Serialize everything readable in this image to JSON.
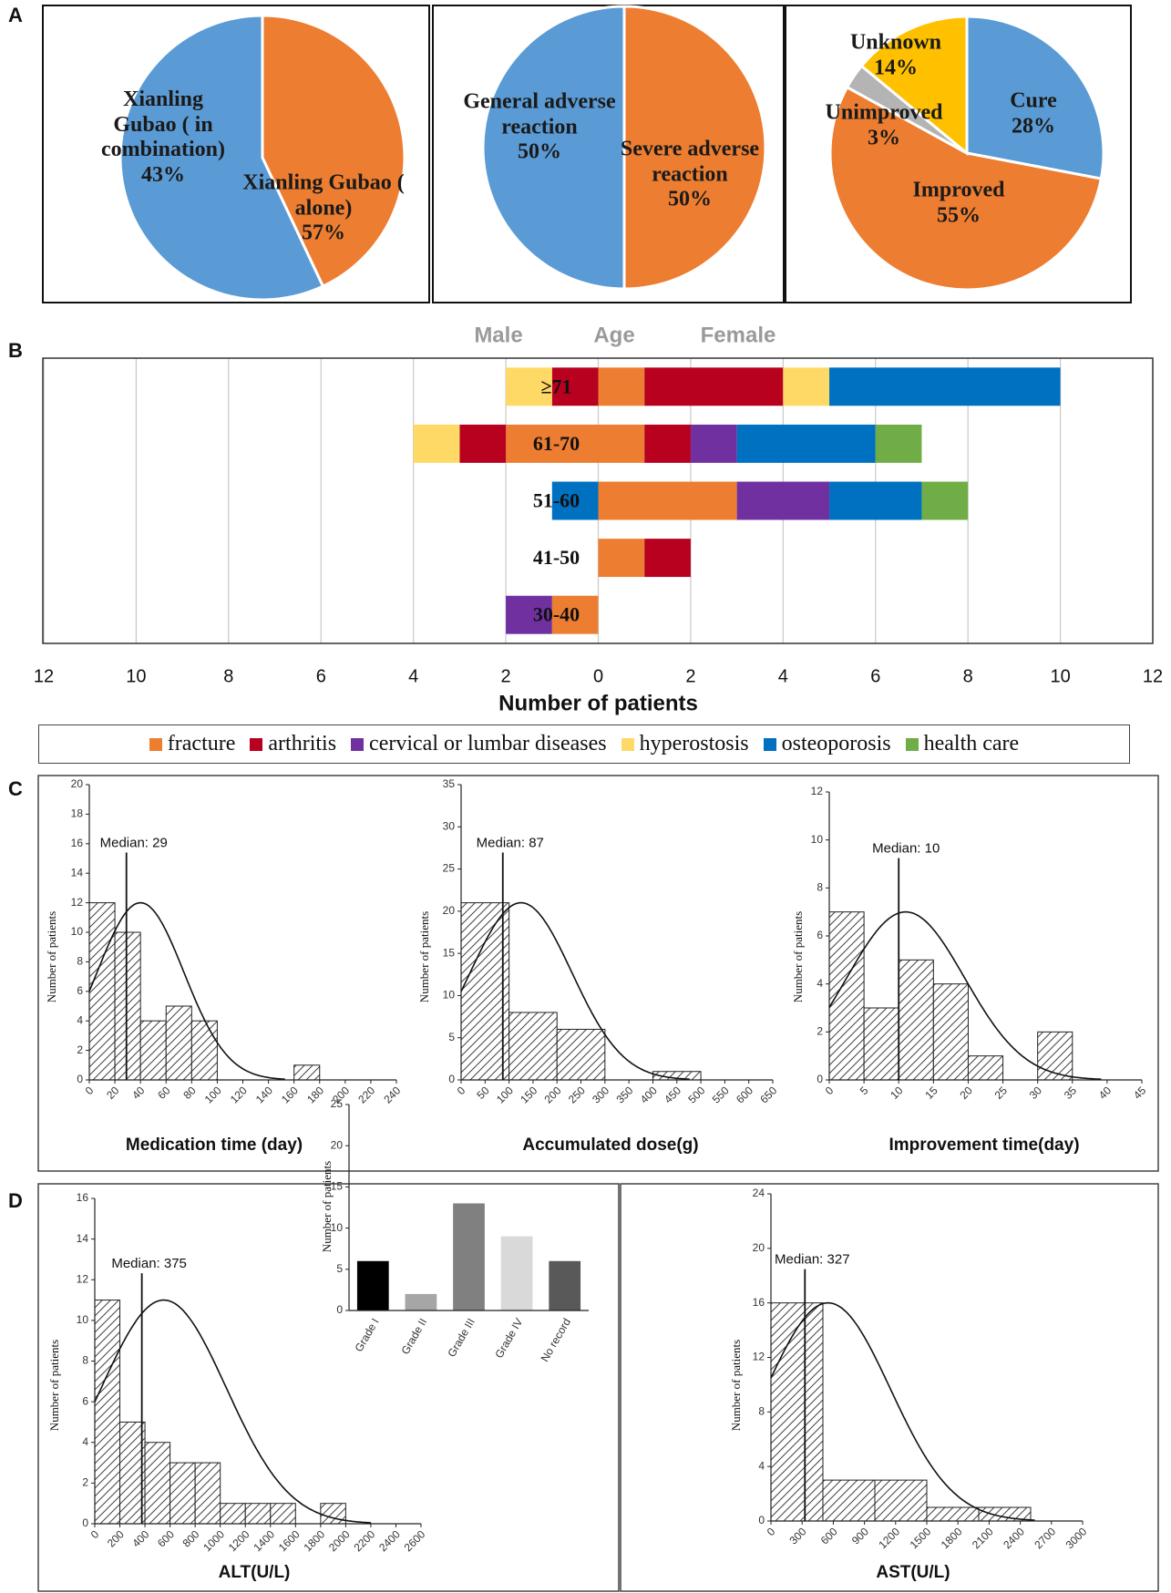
{
  "panels": [
    "A",
    "B",
    "C",
    "D"
  ],
  "chart_data": [
    {
      "type": "pie",
      "labels": [
        "Xianling Gubao ( in combination)",
        "Xianling Gubao ( alone)"
      ],
      "values": [
        43,
        57
      ],
      "value_labels": [
        "43%",
        "57%"
      ],
      "colors": [
        "#ed7d31",
        "#5b9bd5"
      ]
    },
    {
      "type": "pie",
      "labels": [
        "General adverse reaction",
        "Severe adverse reaction"
      ],
      "values": [
        50,
        50
      ],
      "value_labels": [
        "50%",
        "50%"
      ],
      "colors": [
        "#ed7d31",
        "#5b9bd5"
      ]
    },
    {
      "type": "pie",
      "labels": [
        "Cure",
        "Improved",
        "Unimproved",
        "Unknown"
      ],
      "values": [
        28,
        55,
        3,
        14
      ],
      "value_labels": [
        "28%",
        "55%",
        "3%",
        "14%"
      ],
      "colors": [
        "#5b9bd5",
        "#ed7d31",
        "#b4b4b4",
        "#ffc000"
      ]
    },
    {
      "type": "diverging_bar",
      "title_left": "Male",
      "title_center": "Age",
      "title_right": "Female",
      "xlabel": "Number of patients",
      "categories": [
        "≥71",
        "61-70",
        "51-60",
        "41-50",
        "30-40"
      ],
      "series": [
        {
          "name": "fracture",
          "color": "#ed7d31",
          "male": [
            0,
            2,
            0,
            0,
            1
          ],
          "female": [
            1,
            1,
            3,
            1,
            0
          ]
        },
        {
          "name": "arthritis",
          "color": "#b8001f",
          "male": [
            1,
            1,
            0,
            0,
            0
          ],
          "female": [
            3,
            1,
            0,
            1,
            0
          ]
        },
        {
          "name": "cervical or lumbar diseases",
          "color": "#7030a0",
          "male": [
            0,
            0,
            0,
            0,
            1
          ],
          "female": [
            0,
            1,
            2,
            0,
            0
          ]
        },
        {
          "name": "hyperostosis",
          "color": "#ffd966",
          "male": [
            1,
            1,
            0,
            0,
            0
          ],
          "female": [
            1,
            0,
            0,
            0,
            0
          ]
        },
        {
          "name": "osteoporosis",
          "color": "#0070c0",
          "male": [
            0,
            0,
            1,
            0,
            0
          ],
          "female": [
            5,
            3,
            2,
            0,
            0
          ]
        },
        {
          "name": "health care",
          "color": "#70ad47",
          "male": [
            0,
            0,
            0,
            0,
            0
          ],
          "female": [
            0,
            1,
            1,
            0,
            0
          ]
        }
      ],
      "xlim": [
        -12,
        12
      ],
      "xticks": [
        {
          "value": -12,
          "label": "12"
        },
        {
          "value": -10,
          "label": "10"
        },
        {
          "value": -8,
          "label": "8"
        },
        {
          "value": -6,
          "label": "6"
        },
        {
          "value": -4,
          "label": "4"
        },
        {
          "value": -2,
          "label": "2"
        },
        0,
        2,
        4,
        6,
        8,
        10,
        12
      ],
      "grid": true
    },
    {
      "type": "histogram",
      "xlabel": "Medication time (day)",
      "ylabel": "Number of patients",
      "bins": [
        0,
        20,
        40,
        60,
        80,
        100,
        120,
        140,
        160,
        180
      ],
      "counts": [
        12,
        10,
        4,
        5,
        4,
        0,
        0,
        0,
        1
      ],
      "xlim": [
        0,
        240
      ],
      "xticks": [
        0,
        20,
        40,
        60,
        80,
        100,
        120,
        140,
        160,
        180,
        200,
        220,
        240
      ],
      "ylim": [
        0,
        20
      ],
      "yticks": [
        0,
        2,
        4,
        6,
        8,
        10,
        12,
        14,
        16,
        18,
        20
      ],
      "median": 29,
      "median_label": "Median: 29",
      "curve": {
        "mean": 40,
        "sd": 34,
        "peak": 12
      }
    },
    {
      "type": "histogram",
      "xlabel": "Accumulated dose(g)",
      "ylabel": "Number of patients",
      "bins": [
        0,
        100,
        200,
        300,
        400,
        500
      ],
      "counts": [
        21,
        8,
        6,
        0,
        1
      ],
      "xlim": [
        0,
        650
      ],
      "xticks": [
        0,
        50,
        100,
        150,
        200,
        250,
        300,
        350,
        400,
        450,
        500,
        550,
        600,
        650
      ],
      "ylim": [
        0,
        35
      ],
      "yticks": [
        0,
        5,
        10,
        15,
        20,
        25,
        30,
        35
      ],
      "median": 87,
      "median_label": "Median: 87",
      "curve": {
        "mean": 125,
        "sd": 106,
        "peak": 21
      }
    },
    {
      "type": "histogram",
      "xlabel": "Improvement time(day)",
      "ylabel": "Number of patients",
      "bins": [
        0,
        5,
        10,
        15,
        20,
        25,
        30,
        35
      ],
      "counts": [
        7,
        3,
        5,
        4,
        1,
        0,
        2
      ],
      "xlim": [
        0,
        45
      ],
      "xticks": [
        0,
        5,
        10,
        15,
        20,
        25,
        30,
        35,
        40,
        45
      ],
      "ylim": [
        0,
        12
      ],
      "yticks": [
        0,
        2,
        4,
        6,
        8,
        10,
        12
      ],
      "median": 10,
      "median_label": "Median: 10",
      "curve": {
        "mean": 11,
        "sd": 8.5,
        "peak": 7
      }
    },
    {
      "type": "histogram",
      "xlabel": "ALT(U/L)",
      "ylabel": "Number of patients",
      "bins": [
        0,
        200,
        400,
        600,
        800,
        1000,
        1200,
        1400,
        1600,
        1800,
        2000
      ],
      "counts": [
        11,
        5,
        4,
        3,
        3,
        1,
        1,
        1,
        0,
        1
      ],
      "xlim": [
        0,
        2600
      ],
      "xticks": [
        0,
        200,
        400,
        600,
        800,
        1000,
        1200,
        1400,
        1600,
        1800,
        2000,
        2200,
        2400,
        2600
      ],
      "ylim": [
        0,
        16
      ],
      "yticks": [
        0,
        2,
        4,
        6,
        8,
        10,
        12,
        14,
        16
      ],
      "median": 375,
      "median_label": "Median: 375",
      "curve": {
        "mean": 550,
        "sd": 499,
        "peak": 11
      }
    },
    {
      "type": "bar",
      "ylabel": "Number of patients",
      "categories": [
        "Grade I",
        "Grade II",
        "Grade III",
        "Grade IV",
        "No record"
      ],
      "values": [
        6,
        2,
        13,
        9,
        6
      ],
      "colors": [
        "#000000",
        "#a6a6a6",
        "#808080",
        "#d9d9d9",
        "#595959"
      ],
      "ylim": [
        0,
        25
      ],
      "yticks": [
        0,
        5,
        10,
        15,
        20,
        25
      ]
    },
    {
      "type": "histogram",
      "xlabel": "AST(U/L)",
      "ylabel": "Number of patients",
      "bins": [
        0,
        500,
        1000,
        1500,
        2000,
        2500
      ],
      "counts": [
        16,
        3,
        3,
        1,
        1
      ],
      "xlim": [
        0,
        3000
      ],
      "xticks": [
        0,
        300,
        600,
        900,
        1200,
        1500,
        1800,
        2100,
        2400,
        2700,
        3000
      ],
      "ylim": [
        0,
        24
      ],
      "yticks": [
        0,
        4,
        8,
        12,
        16,
        20,
        24
      ],
      "median": 327,
      "median_label": "Median: 327",
      "curve": {
        "mean": 550,
        "sd": 599,
        "peak": 16
      }
    }
  ]
}
